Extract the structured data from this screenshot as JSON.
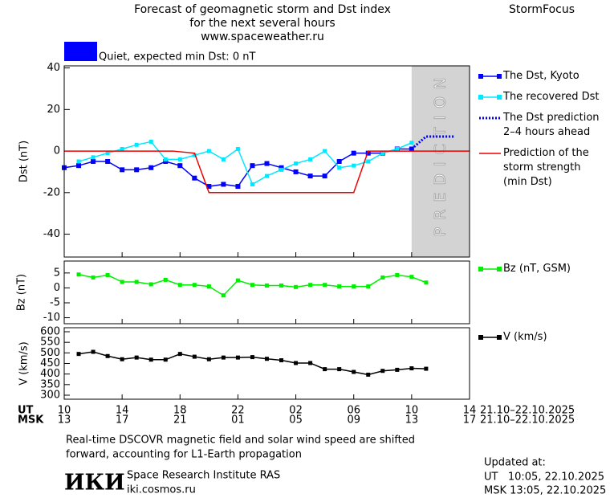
{
  "header": {
    "title_lines": [
      "Forecast of geomagnetic storm and Dst index",
      "for the next several hours",
      "www.spaceweather.ru"
    ],
    "brand": "StormFocus"
  },
  "status": {
    "color": "#0000ff",
    "text": "Quiet, expected min Dst: 0 nT"
  },
  "chart_data": [
    {
      "type": "line",
      "ylabel": "Dst (nT)",
      "xlim": [
        10,
        38
      ],
      "ylim": [
        -51,
        41
      ],
      "yticks": [
        -40,
        -20,
        0,
        20,
        40
      ],
      "prediction_band": {
        "label": "PREDICTION",
        "start": 34,
        "color": "#d3d3d3"
      },
      "series": [
        {
          "name": "The Dst, Kyoto",
          "color": "#0000ff",
          "marker": "square",
          "style": "solid",
          "x": [
            10,
            11,
            12,
            13,
            14,
            15,
            16,
            17,
            18,
            19,
            20,
            21,
            22,
            23,
            24,
            25,
            26,
            27,
            28,
            29,
            30,
            31,
            32,
            33,
            34
          ],
          "values": [
            -8,
            -7,
            -5,
            -5,
            -9,
            -9,
            -8,
            -5,
            -7,
            -13,
            -17,
            -16,
            -17,
            -7,
            -6,
            -8,
            -10,
            -12,
            -12,
            -5,
            -1,
            -1,
            -1,
            1,
            1
          ]
        },
        {
          "name": "The recovered Dst",
          "color": "#00e8ff",
          "marker": "square",
          "style": "solid",
          "x": [
            11,
            12,
            13,
            14,
            15,
            16,
            17,
            18,
            19,
            20,
            21,
            22,
            23,
            24,
            25,
            26,
            27,
            28,
            29,
            30,
            31,
            32,
            33,
            34
          ],
          "values": [
            -5,
            -3,
            -1,
            1,
            3,
            4.5,
            -4,
            -4,
            -2,
            0,
            -4,
            1,
            -16,
            -12,
            -9,
            -6,
            -4,
            0,
            -8,
            -7,
            -5,
            -1,
            1,
            4
          ]
        },
        {
          "name": "The Dst prediction 2–4 hours ahead",
          "color": "#0000ff",
          "marker": "none",
          "style": "dotted",
          "x": [
            34,
            35,
            37
          ],
          "values": [
            1,
            7,
            7
          ]
        },
        {
          "name": "Prediction of the storm strength (min Dst)",
          "color": "#ee0000",
          "marker": "none",
          "style": "solid",
          "x": [
            10,
            17.5,
            19,
            20,
            30,
            31,
            38
          ],
          "values": [
            0,
            0,
            -1,
            -20,
            -20,
            0,
            0
          ]
        }
      ]
    },
    {
      "type": "line",
      "ylabel": "Bz (nT)",
      "xlim": [
        10,
        38
      ],
      "ylim": [
        -12,
        9
      ],
      "yticks": [
        -10,
        -5,
        0,
        5
      ],
      "series": [
        {
          "name": "Bz (nT, GSM)",
          "color": "#00ee00",
          "marker": "square",
          "style": "solid",
          "x": [
            11,
            12,
            13,
            14,
            15,
            16,
            17,
            18,
            19,
            20,
            21,
            22,
            23,
            24,
            25,
            26,
            27,
            28,
            29,
            30,
            31,
            32,
            33,
            34,
            35
          ],
          "values": [
            4.5,
            3.5,
            4.3,
            2,
            2,
            1.2,
            2.7,
            1,
            1,
            0.5,
            -2.5,
            2.5,
            1,
            0.8,
            0.8,
            0.3,
            1,
            1,
            0.5,
            0.5,
            0.5,
            3.5,
            4.3,
            3.7,
            1.8
          ]
        }
      ]
    },
    {
      "type": "line",
      "ylabel": "V (km/s)",
      "xlim": [
        10,
        38
      ],
      "ylim": [
        281,
        619
      ],
      "yticks": [
        300,
        350,
        400,
        450,
        500,
        550,
        600
      ],
      "series": [
        {
          "name": "V (km/s)",
          "color": "#000000",
          "marker": "square",
          "style": "solid",
          "x": [
            11,
            12,
            13,
            14,
            15,
            16,
            17,
            18,
            19,
            20,
            21,
            22,
            23,
            24,
            25,
            26,
            27,
            28,
            29,
            30,
            31,
            32,
            33,
            34,
            35
          ],
          "values": [
            495,
            505,
            485,
            470,
            478,
            468,
            468,
            495,
            482,
            470,
            478,
            478,
            480,
            472,
            465,
            452,
            452,
            423,
            423,
            410,
            397,
            415,
            420,
            427,
            425
          ]
        }
      ]
    }
  ],
  "x_axis": {
    "rows": [
      {
        "name": "UT",
        "dates": "21.10–22.10.2025",
        "ticks": [
          10,
          14,
          18,
          22,
          {
            "value": 26,
            "label": "02"
          },
          {
            "value": 30,
            "label": "06"
          },
          {
            "value": 34,
            "label": "10"
          },
          {
            "value": 38,
            "label": "14"
          }
        ]
      },
      {
        "name": "MSK",
        "dates": "21.10–22.10.2025",
        "ticks": [
          {
            "value": 10,
            "label": "13"
          },
          {
            "value": 14,
            "label": "17"
          },
          {
            "value": 18,
            "label": "21"
          },
          {
            "value": 22,
            "label": "01"
          },
          {
            "value": 26,
            "label": "05"
          },
          {
            "value": 30,
            "label": "09"
          },
          {
            "value": 34,
            "label": "13"
          },
          {
            "value": 38,
            "label": "17"
          }
        ]
      }
    ]
  },
  "footer": {
    "note_lines": [
      "Real-time DSCOVR magnetic field and solar wind speed are shifted",
      "forward, accounting for L1-Earth propagation"
    ],
    "logo": "ИКИ",
    "institute": "Space Research Institute RAS",
    "site": "iki.cosmos.ru",
    "updated_label": "Updated at:",
    "updated_lines": [
      "UT   10:05, 22.10.2025",
      "MSK 13:05, 22.10.2025"
    ]
  }
}
